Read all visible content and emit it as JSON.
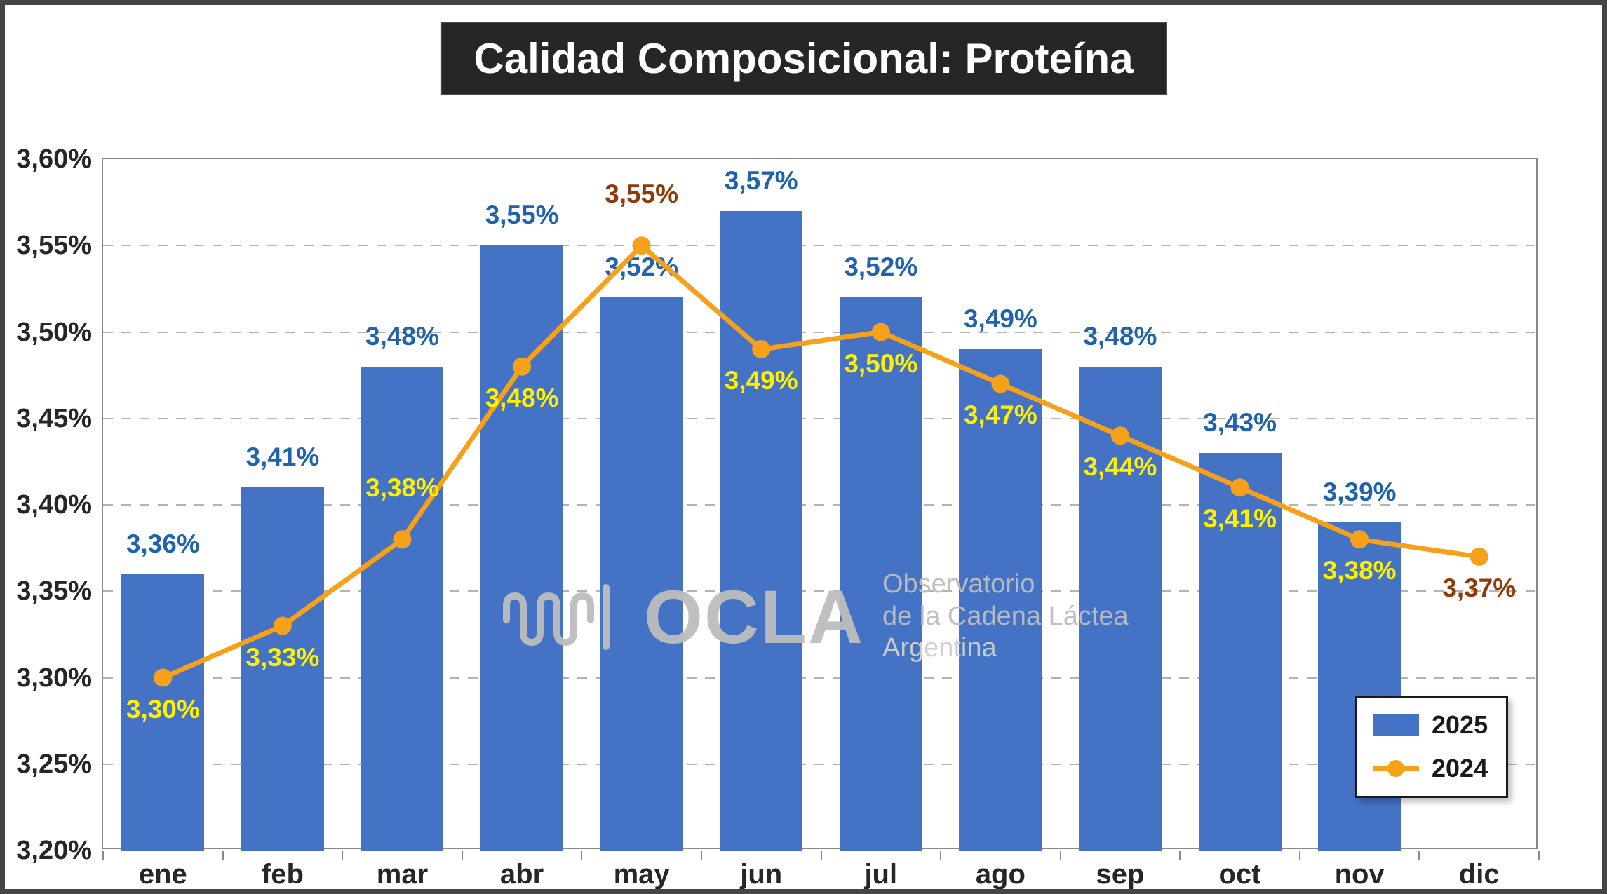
{
  "title": "Calidad Composicional: Proteína",
  "watermark": {
    "brand": "OCLA",
    "line1": "Observatorio",
    "line2": "de la Cadena Láctea",
    "line3": "Argentina"
  },
  "chart_data": {
    "type": "bar",
    "subtype": "combo-bar-line",
    "title": "Calidad Composicional: Proteína",
    "categories": [
      "ene",
      "feb",
      "mar",
      "abr",
      "may",
      "jun",
      "jul",
      "ago",
      "sep",
      "oct",
      "nov",
      "dic"
    ],
    "series": [
      {
        "name": "2025",
        "type": "bar",
        "color": "#4472C4",
        "label_color": "#1F63AD",
        "values": [
          3.36,
          3.41,
          3.48,
          3.55,
          3.52,
          3.57,
          3.52,
          3.49,
          3.48,
          3.43,
          3.39,
          null
        ],
        "labels": [
          "3,36%",
          "3,41%",
          "3,48%",
          "3,55%",
          "3,52%",
          "3,57%",
          "3,52%",
          "3,49%",
          "3,48%",
          "3,43%",
          "3,39%",
          ""
        ]
      },
      {
        "name": "2024",
        "type": "line",
        "color": "#F7A11A",
        "label_color": "#FFF000",
        "label_color_overrides": {
          "4": "#8E3B0B",
          "11": "#8E3B0B"
        },
        "label_sides": [
          "below",
          "below",
          "above",
          "below",
          "above",
          "below",
          "below",
          "below",
          "below",
          "below",
          "below",
          "below"
        ],
        "values": [
          3.3,
          3.33,
          3.38,
          3.48,
          3.55,
          3.49,
          3.5,
          3.47,
          3.44,
          3.41,
          3.38,
          3.37
        ],
        "labels": [
          "3,30%",
          "3,33%",
          "3,38%",
          "3,48%",
          "3,55%",
          "3,49%",
          "3,50%",
          "3,47%",
          "3,44%",
          "3,41%",
          "3,38%",
          "3,37%"
        ]
      }
    ],
    "ylim": [
      3.2,
      3.6
    ],
    "ytick_step": 0.05,
    "ytick_labels_top_to_bottom": [
      "3,60%",
      "3,55%",
      "3,50%",
      "3,45%",
      "3,40%",
      "3,35%",
      "3,30%",
      "3,25%",
      "3,20%"
    ],
    "grid": true,
    "legend_position": "inside-bottom-right"
  }
}
